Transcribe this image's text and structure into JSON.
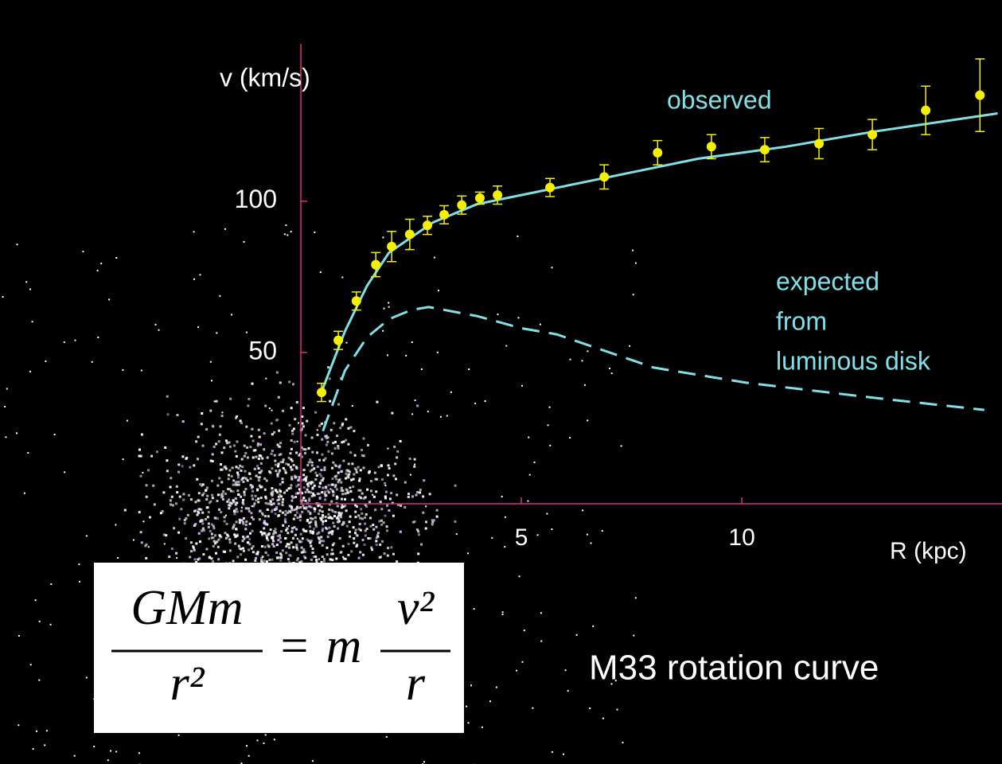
{
  "chart_data": {
    "type": "scatter",
    "title": "M33 rotation curve",
    "ylabel": "v (km/s)",
    "xlabel": "R (kpc)",
    "xlim": [
      0,
      15.9
    ],
    "ylim": [
      0,
      152
    ],
    "xticks": [
      5,
      10
    ],
    "yticks": [
      50,
      100
    ],
    "axis_color": "#d8307c",
    "series": [
      {
        "name": "observed",
        "color": "#f4f000",
        "label_color": "#7fe0e8",
        "x": [
          0.47,
          0.85,
          1.26,
          1.7,
          2.06,
          2.47,
          2.87,
          3.25,
          3.65,
          4.06,
          4.46,
          5.65,
          6.88,
          8.09,
          9.31,
          10.52,
          11.75,
          12.96,
          14.17,
          15.4
        ],
        "values": [
          36.8,
          54,
          67,
          79,
          85,
          89,
          92,
          95.5,
          98.7,
          101,
          102,
          104.5,
          108,
          116,
          118,
          117,
          119,
          122,
          130,
          135
        ],
        "errors": [
          3,
          3,
          3,
          4,
          5,
          5,
          3,
          3,
          3,
          2,
          3,
          3,
          4,
          4,
          4,
          4,
          5,
          5,
          8,
          12
        ]
      }
    ],
    "fit": {
      "color": "#7fe0e8",
      "x": [
        0.47,
        1,
        1.5,
        2,
        3,
        4,
        5,
        7,
        9,
        11,
        13,
        15.8
      ],
      "values": [
        37,
        57,
        72,
        83,
        93,
        99,
        102,
        108,
        114,
        118,
        123,
        129
      ]
    },
    "expected": {
      "color": "#7fe0e8",
      "label_lines": [
        "expected",
        "from",
        "luminous disk"
      ],
      "x": [
        0.5,
        1,
        1.5,
        2,
        2.5,
        2.9,
        4,
        5,
        5.8,
        8,
        10.1,
        13,
        15.5
      ],
      "values": [
        24,
        44,
        55,
        61,
        64,
        65,
        62,
        58,
        56,
        45,
        40,
        35,
        31
      ]
    },
    "equation": {
      "lhs_numerator": "GMm",
      "lhs_denominator": "r²",
      "equals": "=",
      "rhs_factor": "m",
      "rhs_numerator": "v²",
      "rhs_denominator": "r"
    }
  }
}
